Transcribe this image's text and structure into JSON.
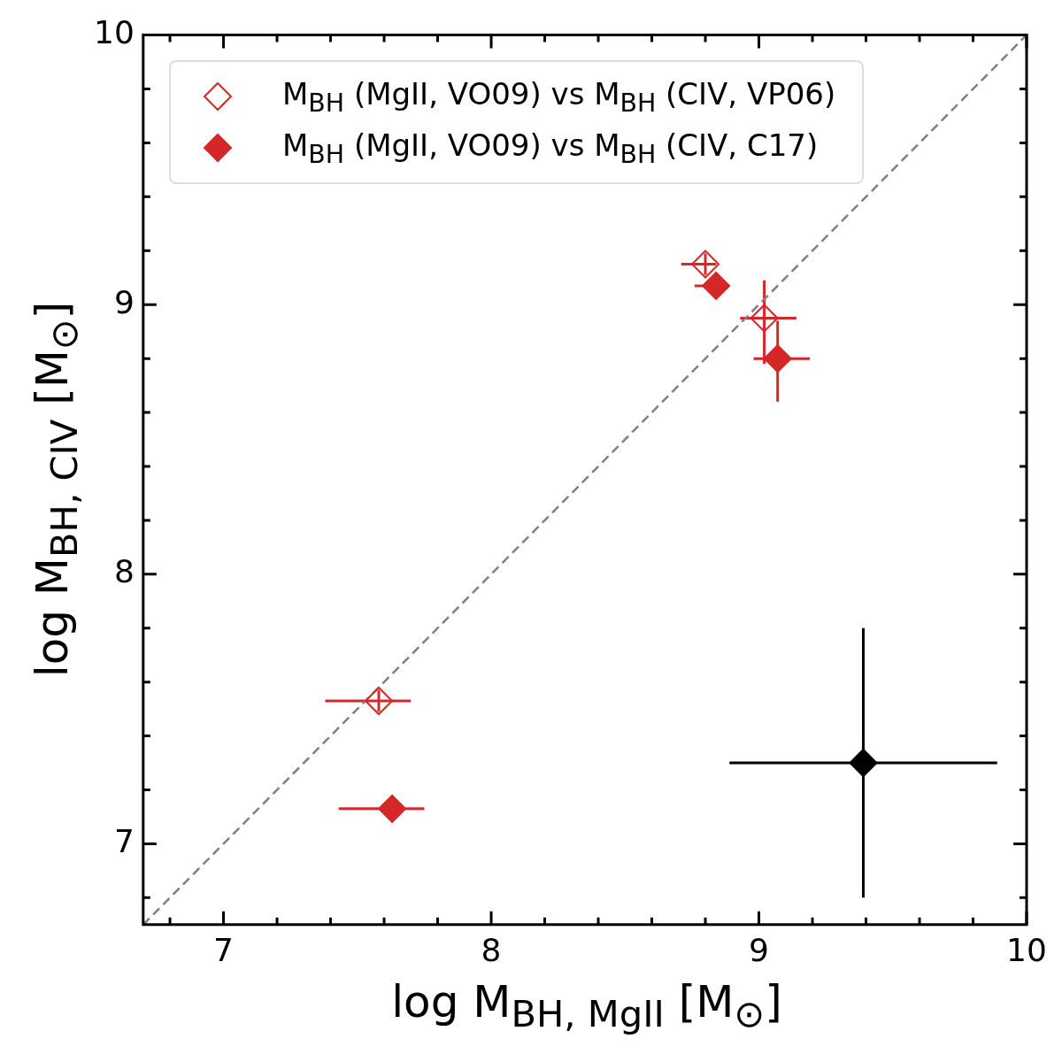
{
  "chart_data": {
    "type": "scatter",
    "xlabel": "log M$_{BH, MgII}$ [M$_{⊙}$]",
    "ylabel": "log M$_{BH, CIV}$ [M$_{⊙}$]",
    "xlim": [
      6.7,
      10
    ],
    "ylim": [
      6.7,
      10
    ],
    "xticks": [
      {
        "value": 6.8,
        "label": null
      },
      7,
      {
        "value": 7.2,
        "label": null
      },
      {
        "value": 7.4,
        "label": null
      },
      {
        "value": 7.6,
        "label": null
      },
      {
        "value": 7.8,
        "label": null
      },
      8,
      {
        "value": 8.2,
        "label": null
      },
      {
        "value": 8.4,
        "label": null
      },
      {
        "value": 8.6,
        "label": null
      },
      {
        "value": 8.8,
        "label": null
      },
      9,
      {
        "value": 9.2,
        "label": null
      },
      {
        "value": 9.4,
        "label": null
      },
      {
        "value": 9.6,
        "label": null
      },
      {
        "value": 9.8,
        "label": null
      },
      10
    ],
    "yticks": [
      {
        "value": 6.8,
        "label": null
      },
      7,
      {
        "value": 7.2,
        "label": null
      },
      {
        "value": 7.4,
        "label": null
      },
      {
        "value": 7.6,
        "label": null
      },
      {
        "value": 7.8,
        "label": null
      },
      8,
      {
        "value": 8.2,
        "label": null
      },
      {
        "value": 8.4,
        "label": null
      },
      {
        "value": 8.6,
        "label": null
      },
      {
        "value": 8.8,
        "label": null
      },
      9,
      {
        "value": 9.2,
        "label": null
      },
      {
        "value": 9.4,
        "label": null
      },
      {
        "value": 9.6,
        "label": null
      },
      {
        "value": 9.8,
        "label": null
      },
      10
    ],
    "grid": false,
    "legend": "top left",
    "marker": "diamond",
    "series": [
      {
        "name": "M$_{BH}$ (MgII, VO09) vs M$_{BH}$ (CIV, VP06)",
        "color": "#d62728",
        "x": [
          7.58,
          8.8,
          9.02
        ],
        "values": [
          7.53,
          9.15,
          8.95
        ],
        "xerrors": [
          [
            7.38,
            7.7
          ],
          [
            8.71,
            8.84
          ],
          [
            8.93,
            9.14
          ]
        ],
        "errors": [
          0.04,
          0.04,
          [
            8.78,
            9.09
          ]
        ]
      },
      {
        "name": "M$_{BH}$ (MgII, VO09) vs M$_{BH}$ (CIV, C17)",
        "color": "#d62728",
        "x": [
          7.63,
          8.84,
          9.07
        ],
        "values": [
          7.13,
          9.07,
          8.8
        ],
        "xerrors": [
          [
            7.43,
            7.75
          ],
          [
            8.76,
            8.87
          ],
          [
            8.98,
            9.19
          ]
        ],
        "errors": [
          0.05,
          0.03,
          [
            8.64,
            8.94
          ]
        ]
      },
      {
        "color": "#000000",
        "x": [
          9.39
        ],
        "values": [
          7.3
        ],
        "xerrors": [
          0.5
        ],
        "errors": [
          0.5
        ]
      },
      {
        "type": "line",
        "color": "#808080",
        "line_style": "dashed",
        "marker": "none",
        "x": [
          6.7,
          10
        ],
        "values": [
          6.7,
          10
        ]
      }
    ]
  }
}
